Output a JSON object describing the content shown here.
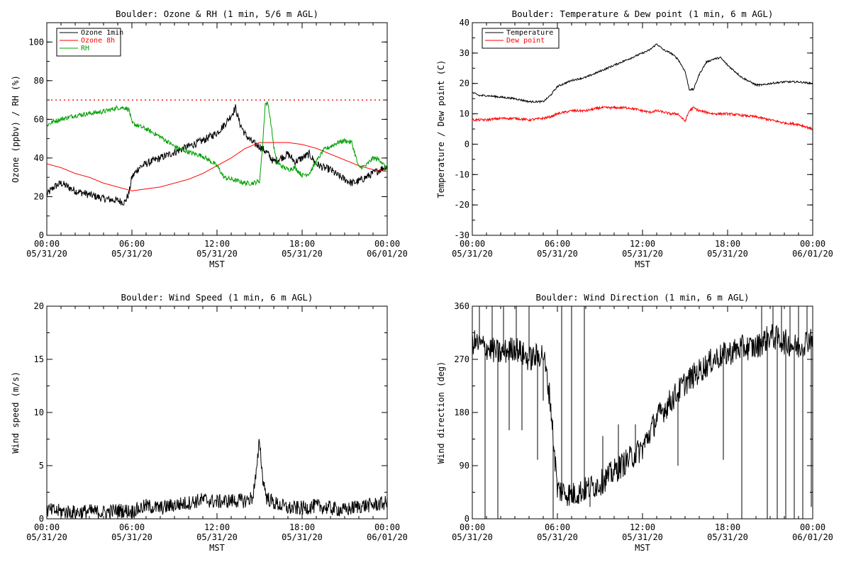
{
  "chart_data": [
    {
      "id": "ozone",
      "type": "line",
      "title": "Boulder: Ozone & RH (1 min, 5/6 m AGL)",
      "ylabel": "Ozone (ppbv) / RH (%)",
      "xlabel": "MST",
      "x_ticks": [
        [
          "00:00",
          "05/31/20"
        ],
        [
          "06:00",
          "05/31/20"
        ],
        [
          "12:00",
          "05/31/20"
        ],
        [
          "18:00",
          "05/31/20"
        ],
        [
          "00:00",
          "06/01/20"
        ]
      ],
      "ylim": [
        0,
        110
      ],
      "y_ticks": [
        0,
        20,
        40,
        60,
        80,
        100
      ],
      "legend_position": "top-left",
      "reference_line": {
        "y": 70,
        "color": "#ff0000",
        "style": "dotted"
      },
      "series": [
        {
          "name": "Ozone 1min",
          "color": "#000000",
          "noise": 2.0,
          "x": [
            0,
            0.5,
            1,
            1.5,
            2,
            3,
            4,
            5,
            5.5,
            5.8,
            6,
            6.5,
            7,
            8,
            9,
            10,
            11,
            12,
            12.5,
            13,
            13.3,
            13.6,
            14,
            14.5,
            15,
            15.5,
            16,
            16.5,
            17,
            17.5,
            18,
            18.5,
            19,
            19.5,
            20,
            20.5,
            21,
            21.5,
            22,
            22.5,
            23,
            23.5,
            24
          ],
          "y": [
            21,
            25,
            27,
            25,
            23,
            21,
            19,
            18,
            17,
            22,
            30,
            35,
            37,
            40,
            43,
            46,
            49,
            53,
            57,
            62,
            66,
            58,
            52,
            48,
            46,
            43,
            38,
            40,
            42,
            38,
            40,
            42,
            37,
            35,
            34,
            31,
            29,
            27,
            28,
            30,
            32,
            34,
            36
          ]
        },
        {
          "name": "Ozone 8h",
          "color": "#ff0000",
          "noise": 0,
          "x": [
            0,
            1,
            2,
            3,
            4,
            5,
            6,
            7,
            8,
            9,
            10,
            11,
            12,
            13,
            14,
            15,
            16,
            17,
            18,
            19,
            20,
            21,
            22,
            23,
            24
          ],
          "y": [
            37,
            35,
            32,
            30,
            27,
            25,
            23,
            24,
            25,
            27,
            29,
            32,
            36,
            40,
            45,
            48,
            48,
            48,
            47,
            45,
            42,
            39,
            36,
            34,
            33
          ]
        },
        {
          "name": "RH",
          "color": "#00a000",
          "noise": 1.2,
          "x": [
            0,
            0.5,
            1,
            2,
            3,
            4,
            5,
            5.5,
            5.8,
            6,
            7,
            8,
            9,
            10,
            11,
            12,
            12.5,
            13,
            14,
            14.5,
            15,
            15.2,
            15.4,
            15.6,
            15.8,
            16,
            16.2,
            16.5,
            17,
            17.5,
            18,
            18.5,
            19,
            19.5,
            20,
            20.5,
            21,
            21.5,
            22,
            22.5,
            23,
            23.5,
            24
          ],
          "y": [
            57,
            59,
            60,
            62,
            63,
            64,
            66,
            66,
            65,
            58,
            55,
            51,
            46,
            43,
            41,
            36,
            30,
            29,
            27,
            27,
            28,
            45,
            68,
            68,
            58,
            46,
            38,
            36,
            34,
            35,
            31,
            32,
            38,
            44,
            46,
            48,
            49,
            48,
            35,
            36,
            40,
            39,
            34
          ]
        }
      ]
    },
    {
      "id": "temp",
      "type": "line",
      "title": "Boulder: Temperature & Dew point (1 min, 6 m AGL)",
      "ylabel": "Temperature / Dew point (C)",
      "xlabel": "MST",
      "x_ticks": [
        [
          "00:00",
          "05/31/20"
        ],
        [
          "06:00",
          "05/31/20"
        ],
        [
          "12:00",
          "05/31/20"
        ],
        [
          "18:00",
          "05/31/20"
        ],
        [
          "00:00",
          "06/01/20"
        ]
      ],
      "ylim": [
        -30,
        40
      ],
      "y_ticks": [
        -30,
        -20,
        -10,
        0,
        10,
        20,
        30,
        40
      ],
      "legend_position": "top-left",
      "series": [
        {
          "name": "Temperature",
          "color": "#000000",
          "noise": 0.3,
          "x": [
            0,
            0.5,
            1,
            2,
            3,
            4,
            4.5,
            5,
            5.5,
            6,
            7,
            8,
            9,
            10,
            11,
            12,
            12.5,
            13,
            13.5,
            14,
            14.5,
            15,
            15.3,
            15.6,
            16,
            16.5,
            17,
            17.5,
            18,
            18.5,
            19,
            20,
            20.5,
            21,
            22,
            23,
            24
          ],
          "y": [
            17,
            16,
            16,
            15.5,
            15,
            14,
            14,
            14,
            16,
            19,
            21,
            22,
            24,
            26,
            28,
            30,
            31,
            33,
            31,
            30,
            28,
            24,
            18,
            18,
            23,
            27,
            28,
            28.5,
            26,
            24,
            22,
            19.5,
            19.5,
            20,
            20.5,
            20.5,
            20
          ]
        },
        {
          "name": "Dew point",
          "color": "#ff0000",
          "noise": 0.4,
          "x": [
            0,
            1,
            2,
            3,
            4,
            5,
            5.5,
            6,
            7,
            8,
            9,
            10,
            11,
            12,
            12.5,
            13,
            13.5,
            14,
            14.5,
            15,
            15.3,
            15.6,
            16,
            17,
            18,
            19,
            20,
            21,
            22,
            23,
            24
          ],
          "y": [
            8,
            8,
            8.5,
            8.5,
            8,
            8.5,
            9,
            10,
            11,
            11,
            12,
            12,
            12,
            11,
            10.5,
            11,
            10.5,
            10,
            10,
            7.5,
            11,
            12,
            11,
            10,
            10,
            9.5,
            9,
            8,
            7,
            6.5,
            5
          ]
        }
      ]
    },
    {
      "id": "wind",
      "type": "line",
      "title": "Boulder: Wind Speed (1 min, 6 m AGL)",
      "ylabel": "Wind speed (m/s)",
      "xlabel": "MST",
      "x_ticks": [
        [
          "00:00",
          "05/31/20"
        ],
        [
          "06:00",
          "05/31/20"
        ],
        [
          "12:00",
          "05/31/20"
        ],
        [
          "18:00",
          "05/31/20"
        ],
        [
          "00:00",
          "06/01/20"
        ]
      ],
      "ylim": [
        0,
        20
      ],
      "y_ticks": [
        0,
        5,
        10,
        15,
        20
      ],
      "series": [
        {
          "name": "",
          "color": "#000000",
          "noise": 0.7,
          "floor": 0,
          "x": [
            0,
            1,
            2,
            3,
            4,
            5,
            6,
            7,
            8,
            9,
            10,
            11,
            12,
            13,
            14,
            14.5,
            14.8,
            15,
            15.2,
            15.5,
            16,
            17,
            18,
            19,
            20,
            21,
            22,
            23,
            24
          ],
          "y": [
            0.8,
            0.7,
            0.6,
            0.7,
            0.6,
            0.8,
            0.7,
            1.2,
            1.0,
            1.3,
            1.5,
            1.8,
            1.6,
            1.7,
            1.7,
            2.0,
            4.5,
            7.5,
            4.0,
            2.0,
            1.5,
            1.0,
            1.0,
            1.2,
            1.0,
            0.8,
            1.2,
            1.3,
            1.5
          ]
        }
      ]
    },
    {
      "id": "dir",
      "type": "line",
      "title": "Boulder: Wind Direction (1 min, 6 m AGL)",
      "ylabel": "Wind direction (deg)",
      "xlabel": "MST",
      "x_ticks": [
        [
          "00:00",
          "05/31/20"
        ],
        [
          "06:00",
          "05/31/20"
        ],
        [
          "12:00",
          "05/31/20"
        ],
        [
          "18:00",
          "05/31/20"
        ],
        [
          "00:00",
          "06/01/20"
        ]
      ],
      "ylim": [
        0,
        360
      ],
      "y_ticks": [
        0,
        90,
        180,
        270,
        360
      ],
      "series": [
        {
          "name": "",
          "color": "#000000",
          "noise": 22,
          "floor": 0,
          "ceil": 360,
          "x": [
            0,
            1,
            2,
            3,
            4,
            5,
            5.5,
            6,
            7,
            8,
            9,
            10,
            11,
            12,
            13,
            14,
            15,
            16,
            17,
            18,
            19,
            20,
            21,
            22,
            23,
            24
          ],
          "y": [
            300,
            290,
            280,
            290,
            270,
            280,
            200,
            50,
            40,
            50,
            60,
            80,
            100,
            120,
            170,
            200,
            230,
            250,
            270,
            280,
            290,
            290,
            310,
            300,
            290,
            310
          ]
        }
      ],
      "spikes": [
        {
          "x": 0.5,
          "to": 360
        },
        {
          "x": 0.9,
          "to": 0
        },
        {
          "x": 1.4,
          "to": 360
        },
        {
          "x": 1.8,
          "to": 0
        },
        {
          "x": 2.2,
          "to": 360
        },
        {
          "x": 2.6,
          "to": 150
        },
        {
          "x": 3.1,
          "to": 360
        },
        {
          "x": 3.5,
          "to": 150
        },
        {
          "x": 4.0,
          "to": 360
        },
        {
          "x": 4.6,
          "to": 100
        },
        {
          "x": 5.0,
          "to": 200
        },
        {
          "x": 5.7,
          "to": 0
        },
        {
          "x": 6.3,
          "to": 360
        },
        {
          "x": 7.0,
          "to": 360
        },
        {
          "x": 7.9,
          "to": 360
        },
        {
          "x": 8.3,
          "to": 20
        },
        {
          "x": 9.2,
          "to": 140
        },
        {
          "x": 10.3,
          "to": 160
        },
        {
          "x": 11.5,
          "to": 160
        },
        {
          "x": 14.5,
          "to": 90
        },
        {
          "x": 17.7,
          "to": 100
        },
        {
          "x": 19.0,
          "to": 0
        },
        {
          "x": 20.4,
          "to": 360
        },
        {
          "x": 20.8,
          "to": 0
        },
        {
          "x": 21.2,
          "to": 360
        },
        {
          "x": 21.5,
          "to": 0
        },
        {
          "x": 21.8,
          "to": 360
        },
        {
          "x": 22.1,
          "to": 0
        },
        {
          "x": 22.4,
          "to": 360
        },
        {
          "x": 22.7,
          "to": 0
        },
        {
          "x": 23.0,
          "to": 360
        },
        {
          "x": 23.3,
          "to": 0
        },
        {
          "x": 23.6,
          "to": 360
        },
        {
          "x": 23.9,
          "to": 20
        }
      ]
    }
  ]
}
